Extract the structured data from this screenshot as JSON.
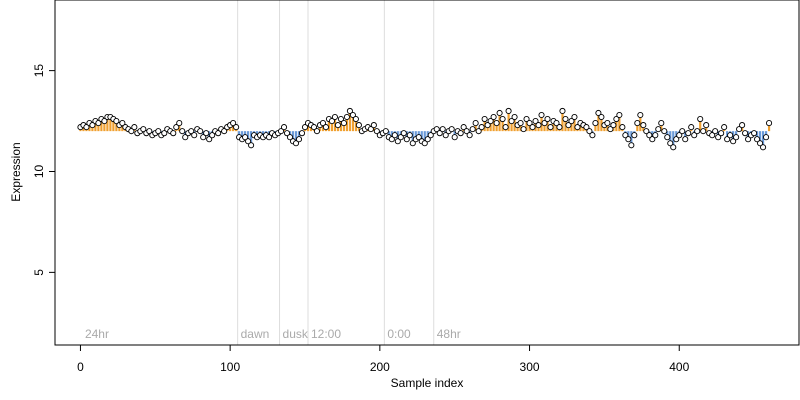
{
  "chart_data": {
    "type": "scatter",
    "xlabel": "Sample index",
    "ylabel": "Expression",
    "xlim": [
      -17,
      480
    ],
    "ylim": [
      1.4,
      18.5
    ],
    "xticks": [
      0,
      100,
      200,
      300,
      400
    ],
    "yticks": [
      5,
      10,
      15
    ],
    "grid": false,
    "baseline": 12.0,
    "colors": {
      "above": "#f0a030",
      "below": "#6a9ad8",
      "point_fill": "#ffffff",
      "point_stroke": "#000000",
      "vline": "#dddddd",
      "annotation": "#aaaaaa"
    },
    "vlines": [
      {
        "x": 105,
        "label": "dawn"
      },
      {
        "x": 133,
        "label": "dusk"
      },
      {
        "x": 152,
        "label": "12:00"
      },
      {
        "x": 203,
        "label": "0:00"
      },
      {
        "x": 236,
        "label": "48hr"
      }
    ],
    "start_label": {
      "x": 3,
      "label": "24hr"
    },
    "points": [
      [
        0,
        12.2
      ],
      [
        2,
        12.3
      ],
      [
        4,
        12.2
      ],
      [
        6,
        12.4
      ],
      [
        8,
        12.3
      ],
      [
        10,
        12.5
      ],
      [
        12,
        12.4
      ],
      [
        14,
        12.6
      ],
      [
        16,
        12.5
      ],
      [
        18,
        12.7
      ],
      [
        20,
        12.7
      ],
      [
        22,
        12.6
      ],
      [
        24,
        12.5
      ],
      [
        26,
        12.3
      ],
      [
        28,
        12.4
      ],
      [
        30,
        12.2
      ],
      [
        32,
        12.1
      ],
      [
        34,
        12.0
      ],
      [
        36,
        12.2
      ],
      [
        38,
        11.9
      ],
      [
        40,
        12.0
      ],
      [
        42,
        12.1
      ],
      [
        44,
        11.9
      ],
      [
        46,
        12.0
      ],
      [
        48,
        11.8
      ],
      [
        50,
        11.9
      ],
      [
        52,
        12.0
      ],
      [
        54,
        11.8
      ],
      [
        56,
        11.9
      ],
      [
        58,
        12.1
      ],
      [
        60,
        12.0
      ],
      [
        62,
        11.9
      ],
      [
        64,
        12.2
      ],
      [
        66,
        12.4
      ],
      [
        68,
        12.0
      ],
      [
        70,
        11.7
      ],
      [
        72,
        11.9
      ],
      [
        74,
        12.0
      ],
      [
        76,
        11.8
      ],
      [
        78,
        12.1
      ],
      [
        80,
        12.0
      ],
      [
        82,
        11.7
      ],
      [
        84,
        11.9
      ],
      [
        86,
        11.6
      ],
      [
        88,
        11.8
      ],
      [
        90,
        12.0
      ],
      [
        92,
        11.9
      ],
      [
        94,
        12.1
      ],
      [
        96,
        12.0
      ],
      [
        98,
        12.2
      ],
      [
        100,
        12.3
      ],
      [
        102,
        12.4
      ],
      [
        104,
        12.2
      ],
      [
        106,
        11.7
      ],
      [
        108,
        11.6
      ],
      [
        110,
        11.7
      ],
      [
        112,
        11.5
      ],
      [
        114,
        11.3
      ],
      [
        116,
        11.8
      ],
      [
        118,
        11.7
      ],
      [
        120,
        11.8
      ],
      [
        122,
        11.7
      ],
      [
        124,
        11.8
      ],
      [
        126,
        11.7
      ],
      [
        128,
        11.9
      ],
      [
        130,
        11.8
      ],
      [
        132,
        11.9
      ],
      [
        134,
        12.0
      ],
      [
        136,
        12.2
      ],
      [
        138,
        11.9
      ],
      [
        140,
        11.7
      ],
      [
        142,
        11.5
      ],
      [
        144,
        11.4
      ],
      [
        146,
        11.6
      ],
      [
        148,
        11.9
      ],
      [
        150,
        12.2
      ],
      [
        152,
        12.4
      ],
      [
        154,
        12.3
      ],
      [
        156,
        12.2
      ],
      [
        158,
        12.0
      ],
      [
        160,
        12.3
      ],
      [
        162,
        12.4
      ],
      [
        164,
        12.2
      ],
      [
        166,
        12.6
      ],
      [
        168,
        12.5
      ],
      [
        170,
        12.7
      ],
      [
        172,
        12.3
      ],
      [
        174,
        12.6
      ],
      [
        176,
        12.4
      ],
      [
        178,
        12.7
      ],
      [
        180,
        13.0
      ],
      [
        182,
        12.8
      ],
      [
        184,
        12.6
      ],
      [
        186,
        12.3
      ],
      [
        188,
        12.0
      ],
      [
        190,
        12.1
      ],
      [
        192,
        12.2
      ],
      [
        194,
        12.1
      ],
      [
        196,
        12.3
      ],
      [
        198,
        12.0
      ],
      [
        200,
        11.8
      ],
      [
        202,
        11.9
      ],
      [
        204,
        12.0
      ],
      [
        206,
        11.7
      ],
      [
        208,
        11.6
      ],
      [
        210,
        11.8
      ],
      [
        212,
        11.5
      ],
      [
        214,
        11.7
      ],
      [
        216,
        11.9
      ],
      [
        218,
        11.6
      ],
      [
        220,
        11.8
      ],
      [
        222,
        11.4
      ],
      [
        224,
        11.6
      ],
      [
        226,
        11.7
      ],
      [
        228,
        11.5
      ],
      [
        230,
        11.4
      ],
      [
        232,
        11.6
      ],
      [
        234,
        11.8
      ],
      [
        236,
        12.0
      ],
      [
        238,
        12.1
      ],
      [
        240,
        11.9
      ],
      [
        242,
        12.1
      ],
      [
        244,
        11.8
      ],
      [
        246,
        12.0
      ],
      [
        248,
        12.1
      ],
      [
        250,
        11.7
      ],
      [
        252,
        12.0
      ],
      [
        254,
        11.9
      ],
      [
        256,
        12.2
      ],
      [
        258,
        12.0
      ],
      [
        260,
        11.8
      ],
      [
        262,
        12.1
      ],
      [
        264,
        12.4
      ],
      [
        266,
        12.0
      ],
      [
        268,
        12.2
      ],
      [
        270,
        12.6
      ],
      [
        272,
        12.3
      ],
      [
        274,
        12.5
      ],
      [
        276,
        12.7
      ],
      [
        278,
        12.4
      ],
      [
        280,
        12.9
      ],
      [
        282,
        12.6
      ],
      [
        284,
        12.2
      ],
      [
        286,
        13.0
      ],
      [
        288,
        12.5
      ],
      [
        290,
        12.7
      ],
      [
        292,
        12.3
      ],
      [
        294,
        12.4
      ],
      [
        296,
        12.1
      ],
      [
        298,
        12.6
      ],
      [
        300,
        12.4
      ],
      [
        302,
        12.2
      ],
      [
        304,
        12.5
      ],
      [
        306,
        12.3
      ],
      [
        308,
        12.8
      ],
      [
        310,
        12.4
      ],
      [
        312,
        12.6
      ],
      [
        314,
        12.2
      ],
      [
        316,
        12.5
      ],
      [
        318,
        12.4
      ],
      [
        320,
        12.2
      ],
      [
        322,
        13.0
      ],
      [
        324,
        12.6
      ],
      [
        326,
        12.3
      ],
      [
        328,
        12.5
      ],
      [
        330,
        12.7
      ],
      [
        332,
        12.2
      ],
      [
        334,
        12.4
      ],
      [
        336,
        12.3
      ],
      [
        338,
        12.2
      ],
      [
        340,
        12.0
      ],
      [
        342,
        11.8
      ],
      [
        344,
        12.4
      ],
      [
        346,
        12.9
      ],
      [
        348,
        12.7
      ],
      [
        350,
        12.3
      ],
      [
        352,
        12.4
      ],
      [
        354,
        12.1
      ],
      [
        356,
        12.3
      ],
      [
        358,
        12.6
      ],
      [
        360,
        12.8
      ],
      [
        362,
        12.2
      ],
      [
        364,
        11.8
      ],
      [
        366,
        11.6
      ],
      [
        368,
        11.3
      ],
      [
        370,
        11.8
      ],
      [
        372,
        12.4
      ],
      [
        374,
        12.8
      ],
      [
        376,
        12.3
      ],
      [
        378,
        12.0
      ],
      [
        380,
        11.8
      ],
      [
        382,
        11.6
      ],
      [
        384,
        11.8
      ],
      [
        386,
        12.1
      ],
      [
        388,
        12.4
      ],
      [
        390,
        12.0
      ],
      [
        392,
        11.7
      ],
      [
        394,
        11.4
      ],
      [
        396,
        11.2
      ],
      [
        398,
        11.6
      ],
      [
        400,
        11.8
      ],
      [
        402,
        12.0
      ],
      [
        404,
        11.6
      ],
      [
        406,
        11.9
      ],
      [
        408,
        12.2
      ],
      [
        410,
        11.8
      ],
      [
        412,
        12.0
      ],
      [
        414,
        12.6
      ],
      [
        416,
        12.0
      ],
      [
        418,
        12.3
      ],
      [
        420,
        11.9
      ],
      [
        422,
        11.8
      ],
      [
        424,
        12.0
      ],
      [
        426,
        11.7
      ],
      [
        428,
        11.9
      ],
      [
        430,
        12.2
      ],
      [
        432,
        11.6
      ],
      [
        434,
        11.8
      ],
      [
        436,
        11.5
      ],
      [
        438,
        11.7
      ],
      [
        440,
        12.1
      ],
      [
        442,
        12.3
      ],
      [
        444,
        11.9
      ],
      [
        446,
        11.6
      ],
      [
        448,
        11.8
      ],
      [
        450,
        11.9
      ],
      [
        452,
        11.6
      ],
      [
        454,
        11.4
      ],
      [
        456,
        11.2
      ],
      [
        458,
        11.7
      ],
      [
        460,
        12.4
      ]
    ]
  }
}
